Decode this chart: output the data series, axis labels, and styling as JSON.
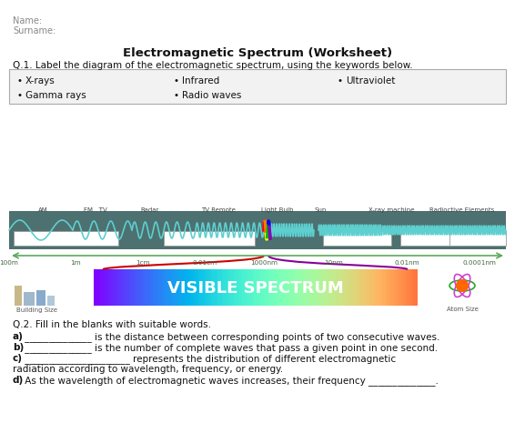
{
  "title": "Electromagnetic Spectrum (Worksheet)",
  "name_label": "Name:",
  "surname_label": "Surname:",
  "q1_text": "Q.1. Label the diagram of the electromagnetic spectrum, using the keywords below.",
  "keywords_row1": [
    "X-rays",
    "Infrared",
    "Ultraviolet"
  ],
  "keywords_row2": [
    "Gamma rays",
    "Radio waves"
  ],
  "spectrum_labels": [
    "AM",
    "FM   TV",
    "Radar",
    "TV Remote",
    "Light Bulb",
    "Sun",
    "X-ray machine",
    "Radioctive Elements"
  ],
  "wavelength_labels": [
    "100m",
    "1m",
    "1cm",
    "0.01cm",
    "1000nm",
    "10nm",
    "0.01nm",
    "0.0001nm"
  ],
  "building_label": "Building Size",
  "atom_label": "Atom Size",
  "visible_text": "VISIBLE SPECTRUM",
  "q2_text": "Q.2. Fill in the blanks with suitable words.",
  "q2a": "a) ______________ is the distance between corresponding points of two consecutive waves.",
  "q2b": "b) ______________ is the number of complete waves that pass a given point in one second.",
  "q2c1": "c) ______________________ represents the distribution of different electromagnetic",
  "q2c2": "radiation according to wavelength, frequency, or energy.",
  "q2d": "d) As the wavelength of electromagnetic waves increases, their frequency ______________.",
  "bg_color": "#ffffff",
  "spectrum_bg": "#4d7070",
  "wave_color": "#5ecfcf",
  "arrow_color": "#5aaa5a",
  "kw_box_bg": "#f2f2f2",
  "kw_box_border": "#aaaaaa"
}
